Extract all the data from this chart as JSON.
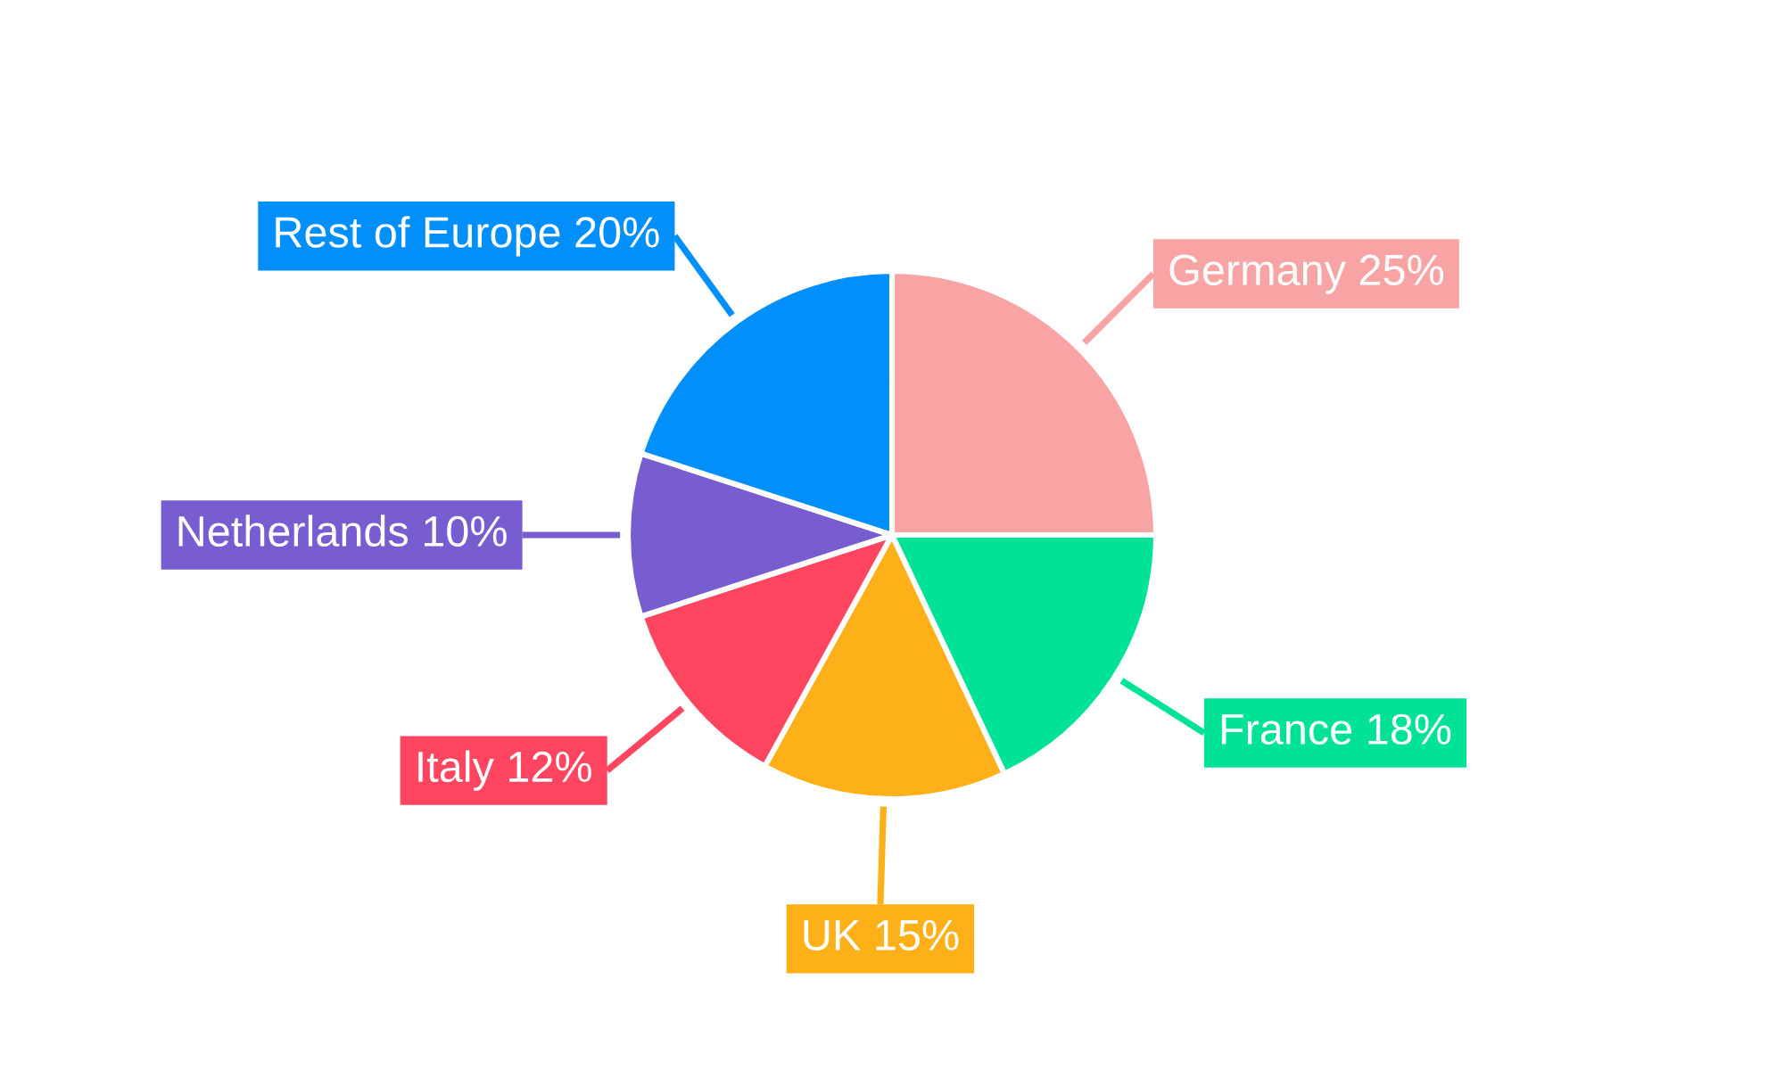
{
  "chart_data": {
    "type": "pie",
    "categories": [
      "Germany",
      "France",
      "UK",
      "Italy",
      "Netherlands",
      "Rest of Europe"
    ],
    "values": [
      25,
      18,
      15,
      12,
      10,
      20
    ],
    "value_labels": [
      "25%",
      "18%",
      "15%",
      "12%",
      "10%",
      "20%"
    ],
    "colors": [
      "#f8a3a4",
      "#00e396",
      "#feb019",
      "#ff4560",
      "#775dd0",
      "#008ffb"
    ]
  }
}
